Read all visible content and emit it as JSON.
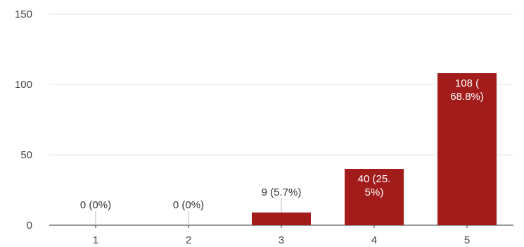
{
  "chart_data": {
    "type": "bar",
    "title": "",
    "xlabel": "",
    "ylabel": "",
    "categories": [
      "1",
      "2",
      "3",
      "4",
      "5"
    ],
    "values": [
      0,
      0,
      9,
      40,
      108
    ],
    "labels": [
      [
        "0 (0%)"
      ],
      [
        "0 (0%)"
      ],
      [
        "9 (5.7%)"
      ],
      [
        "40 (25.",
        "5%)"
      ],
      [
        "108 (",
        "68.8%)"
      ]
    ],
    "ylim": [
      0,
      150
    ],
    "yticks": [
      "0",
      "50",
      "100",
      "150"
    ],
    "grid": true,
    "bar_color": "#a31c1c"
  }
}
